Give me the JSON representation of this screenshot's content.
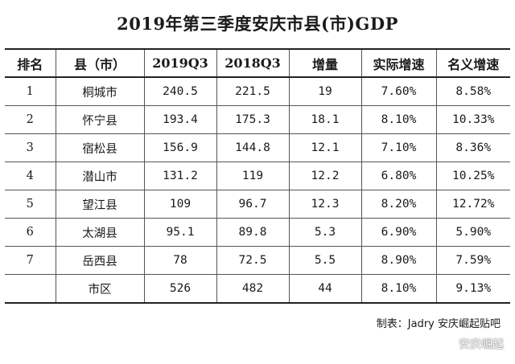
{
  "title": "2019年第三季度安庆市县(市)GDP",
  "table": {
    "headers": [
      "排名",
      "县（市）",
      "2019Q3",
      "2018Q3",
      "增量",
      "实际增速",
      "名义增速"
    ],
    "rows": [
      [
        "1",
        "桐城市",
        "240.5",
        "221.5",
        "19",
        "7.60%",
        "8.58%"
      ],
      [
        "2",
        "怀宁县",
        "193.4",
        "175.3",
        "18.1",
        "8.10%",
        "10.33%"
      ],
      [
        "3",
        "宿松县",
        "156.9",
        "144.8",
        "12.1",
        "7.10%",
        "8.36%"
      ],
      [
        "4",
        "潜山市",
        "131.2",
        "119",
        "12.2",
        "6.80%",
        "10.25%"
      ],
      [
        "5",
        "望江县",
        "109",
        "96.7",
        "12.3",
        "8.20%",
        "12.72%"
      ],
      [
        "6",
        "太湖县",
        "95.1",
        "89.8",
        "5.3",
        "6.90%",
        "5.90%"
      ],
      [
        "7",
        "岳西县",
        "78",
        "72.5",
        "5.5",
        "8.90%",
        "7.59%"
      ],
      [
        "",
        "市区",
        "526",
        "482",
        "44",
        "8.10%",
        "9.13%"
      ]
    ]
  },
  "footer": {
    "note": "制表：Jadry 安庆崛起贴吧"
  },
  "watermark": {
    "icon": "wechat-icon",
    "text": "安庆崛起"
  }
}
